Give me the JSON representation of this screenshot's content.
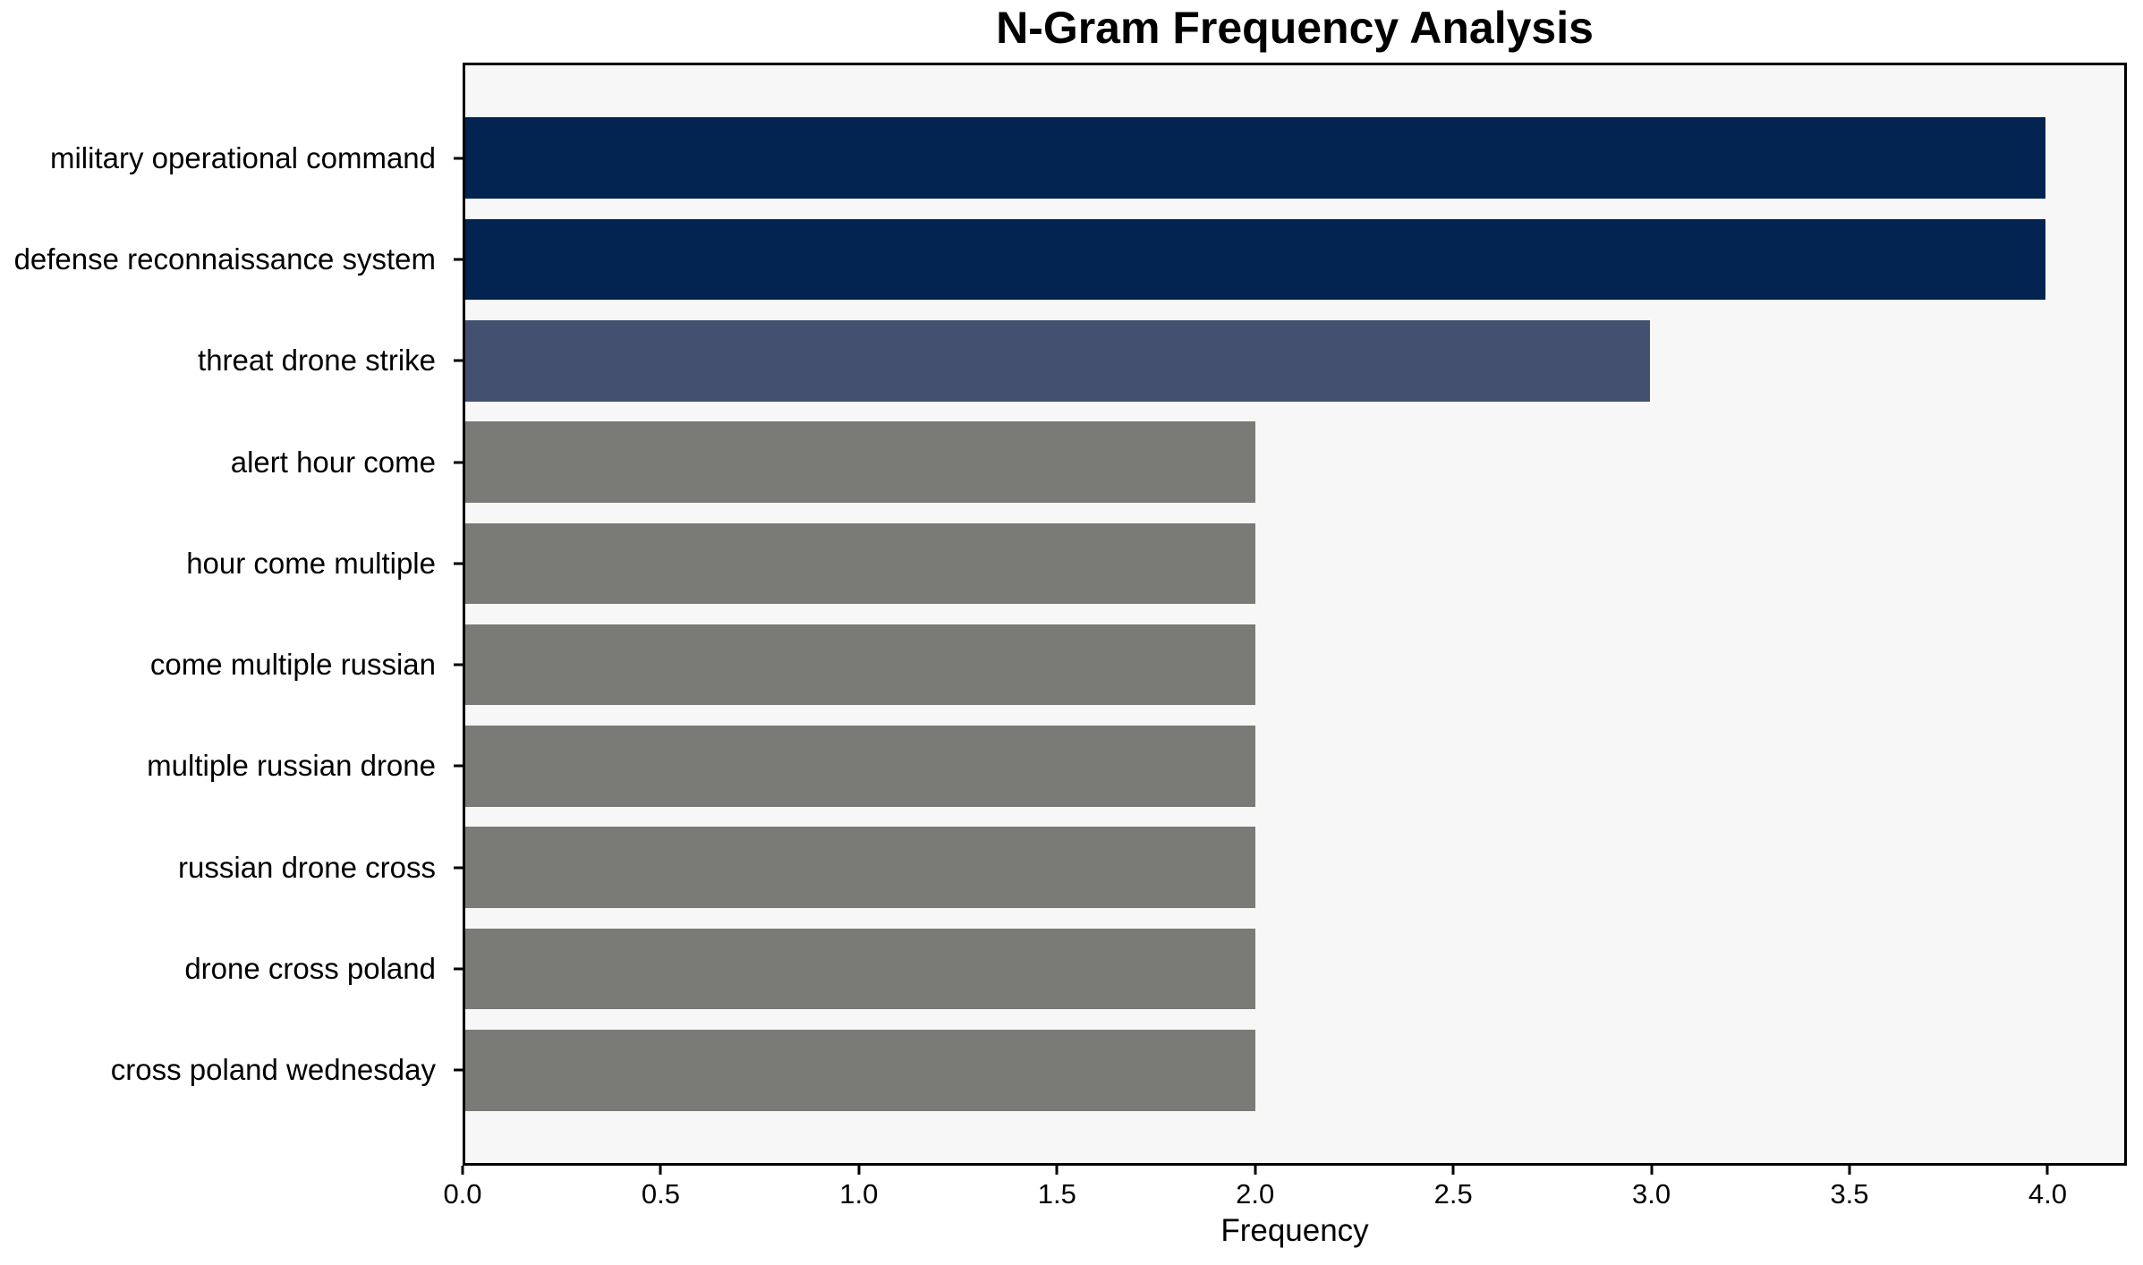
{
  "chart_data": {
    "type": "bar",
    "orientation": "horizontal",
    "title": "N-Gram Frequency Analysis",
    "xlabel": "Frequency",
    "ylabel": "",
    "categories": [
      "military operational command",
      "defense reconnaissance system",
      "threat drone strike",
      "alert hour come",
      "hour come multiple",
      "come multiple russian",
      "multiple russian drone",
      "russian drone cross",
      "drone cross poland",
      "cross poland wednesday"
    ],
    "values": [
      4,
      4,
      3,
      2,
      2,
      2,
      2,
      2,
      2,
      2
    ],
    "bar_colors": [
      "#032350",
      "#032350",
      "#445070",
      "#7a7a76",
      "#7a7a76",
      "#7a7a76",
      "#7a7a76",
      "#7a7a76",
      "#7a7a76",
      "#7a7a76"
    ],
    "xlim": [
      0,
      4.2
    ],
    "x_tick_values": [
      0,
      0.5,
      1.0,
      1.5,
      2.0,
      2.5,
      3.0,
      3.5,
      4.0
    ],
    "x_tick_labels": [
      "0.0",
      "0.5",
      "1.0",
      "1.5",
      "2.0",
      "2.5",
      "3.0",
      "3.5",
      "4.0"
    ],
    "grid": false,
    "legend": null,
    "bar_height_fraction": 0.8,
    "plot_background": "#f8f7f7",
    "figure_background": "#ffffff",
    "spine_color": "#000000",
    "text_color": "#000000"
  }
}
